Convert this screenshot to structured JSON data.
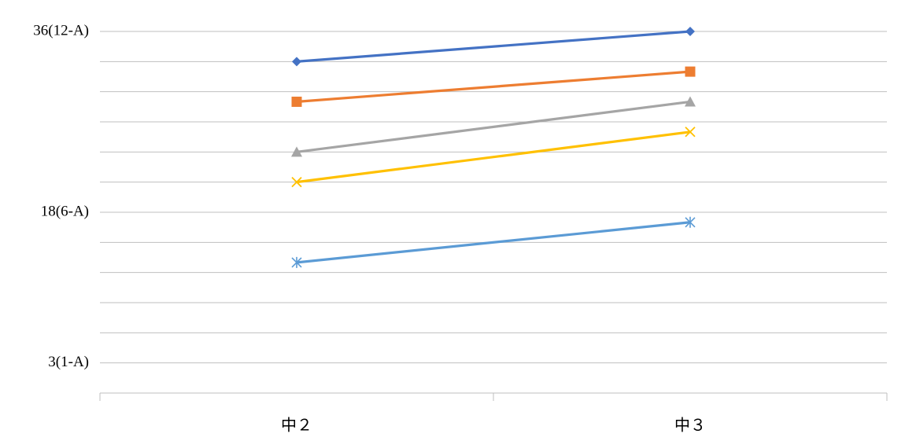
{
  "chart_data": {
    "type": "line",
    "categories": [
      "中２",
      "中３"
    ],
    "y_ticks": [
      {
        "value": 3,
        "label": "3(1-A)"
      },
      {
        "value": 18,
        "label": "18(6-A)"
      },
      {
        "value": 36,
        "label": "36(12-A)"
      }
    ],
    "ylim": [
      0,
      36
    ],
    "grid": true,
    "legend": "none",
    "series": [
      {
        "values": [
          33,
          36
        ],
        "color": "#4472C4",
        "marker": "diamond"
      },
      {
        "values": [
          29,
          32
        ],
        "color": "#ED7D31",
        "marker": "square"
      },
      {
        "values": [
          24,
          29
        ],
        "color": "#A5A5A5",
        "marker": "triangle"
      },
      {
        "values": [
          21,
          26
        ],
        "color": "#FFC000",
        "marker": "x"
      },
      {
        "values": [
          13,
          17
        ],
        "color": "#5B9BD5",
        "marker": "star"
      }
    ]
  }
}
